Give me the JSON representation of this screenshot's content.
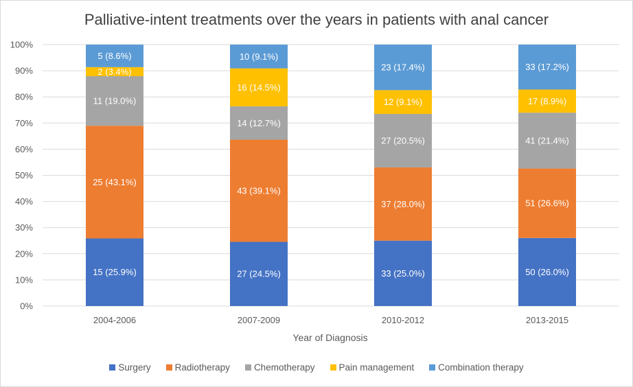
{
  "chart_data": {
    "type": "bar",
    "stacked": true,
    "percent_stacked": true,
    "title": "Palliative-intent treatments over the years in patients with anal cancer",
    "xlabel": "Year of Diagnosis",
    "ylabel": "",
    "ylim": [
      0,
      100
    ],
    "yticks": [
      "0%",
      "10%",
      "20%",
      "30%",
      "40%",
      "50%",
      "60%",
      "70%",
      "80%",
      "90%",
      "100%"
    ],
    "categories": [
      "2004-2006",
      "2007-2009",
      "2010-2012",
      "2013-2015"
    ],
    "series": [
      {
        "name": "Surgery",
        "color": "#4472c4",
        "counts": [
          15,
          27,
          33,
          50
        ],
        "values": [
          25.9,
          24.5,
          25.0,
          26.0
        ],
        "labels": [
          "15 (25.9%)",
          "27 (24.5%)",
          "33 (25.0%)",
          "50 (26.0%)"
        ]
      },
      {
        "name": "Radiotherapy",
        "color": "#ed7d31",
        "counts": [
          25,
          43,
          37,
          51
        ],
        "values": [
          43.1,
          39.1,
          28.0,
          26.6
        ],
        "labels": [
          "25 (43.1%)",
          "43 (39.1%)",
          "37 (28.0%)",
          "51 (26.6%)"
        ]
      },
      {
        "name": "Chemotherapy",
        "color": "#a5a5a5",
        "counts": [
          11,
          14,
          27,
          41
        ],
        "values": [
          19.0,
          12.7,
          20.5,
          21.4
        ],
        "labels": [
          "11 (19.0%)",
          "14 (12.7%)",
          "27 (20.5%)",
          "41 (21.4%)"
        ]
      },
      {
        "name": "Pain management",
        "color": "#ffc000",
        "counts": [
          2,
          16,
          12,
          17
        ],
        "values": [
          3.4,
          14.5,
          9.1,
          8.9
        ],
        "labels": [
          "2 (3.4%)",
          "16 (14.5%)",
          "12 (9.1%)",
          "17 (8.9%)"
        ]
      },
      {
        "name": "Combination therapy",
        "color": "#5b9bd5",
        "counts": [
          5,
          10,
          23,
          33
        ],
        "values": [
          8.6,
          9.1,
          17.4,
          17.2
        ],
        "labels": [
          "5 (8.6%)",
          "10 (9.1%)",
          "23 (17.4%)",
          "33 (17.2%)"
        ]
      }
    ],
    "grid": true,
    "legend_position": "bottom"
  }
}
